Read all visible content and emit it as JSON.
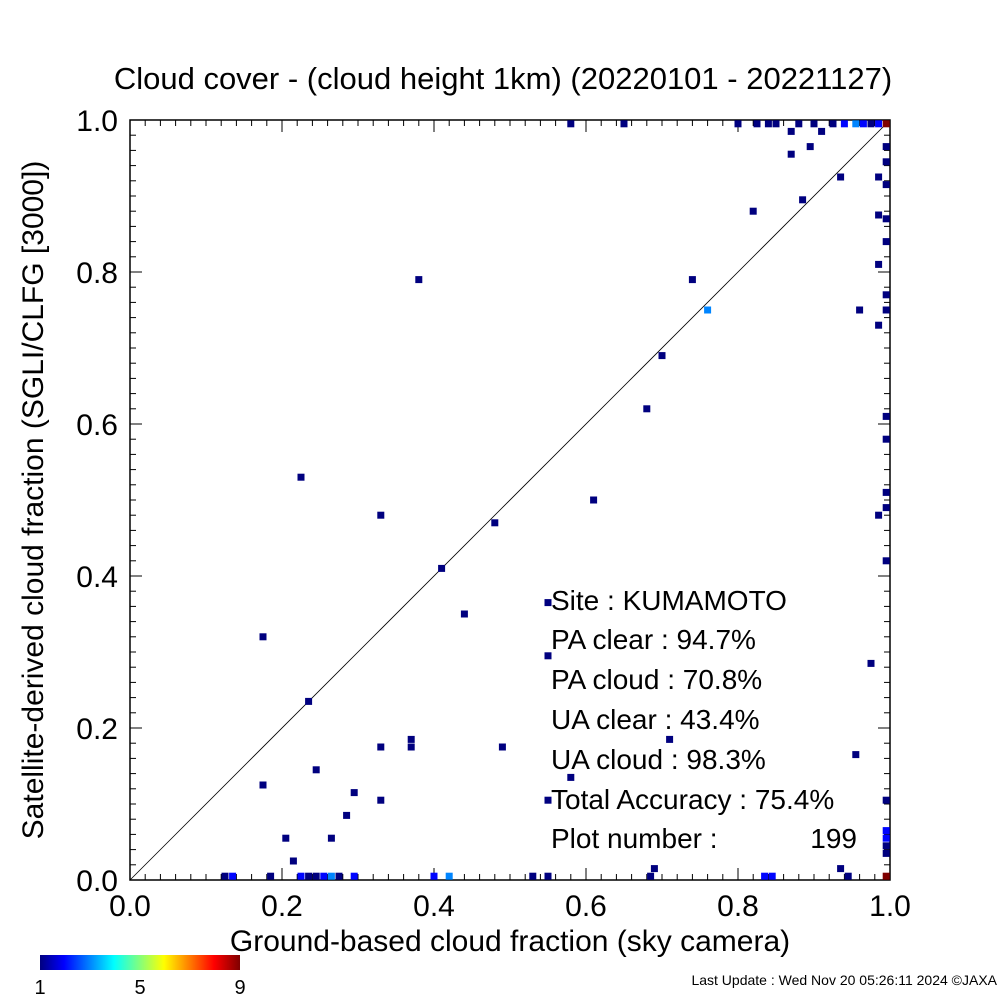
{
  "chart_data": {
    "type": "heatmap",
    "title": "Cloud cover - (cloud height 1km)  (20220101 - 20221127)",
    "xlabel": "Ground-based cloud fraction (sky camera)",
    "ylabel": "Satellite-derived cloud fraction (SGLI/CLFG [3000])",
    "xlim": [
      0,
      1
    ],
    "ylim": [
      0,
      1
    ],
    "xticks": [
      "0.0",
      "0.2",
      "0.4",
      "0.6",
      "0.8",
      "1.0"
    ],
    "yticks": [
      "0.0",
      "0.2",
      "0.4",
      "0.6",
      "0.8",
      "1.0"
    ],
    "reference_line": "1:1 diagonal",
    "grid": false,
    "colorbar": {
      "min": 1,
      "max": 9,
      "labels": [
        "1",
        "5",
        "9"
      ],
      "colors": [
        "#00007f",
        "#0000ff",
        "#00ffff",
        "#ffff00",
        "#ff0000",
        "#7f0000"
      ]
    },
    "points": [
      {
        "x": 0.175,
        "y": 0.32,
        "count": 1
      },
      {
        "x": 0.225,
        "y": 0.53,
        "count": 1
      },
      {
        "x": 0.235,
        "y": 0.235,
        "count": 1
      },
      {
        "x": 0.245,
        "y": 0.145,
        "count": 1
      },
      {
        "x": 0.175,
        "y": 0.125,
        "count": 1
      },
      {
        "x": 0.205,
        "y": 0.055,
        "count": 1
      },
      {
        "x": 0.215,
        "y": 0.025,
        "count": 1
      },
      {
        "x": 0.265,
        "y": 0.055,
        "count": 1
      },
      {
        "x": 0.285,
        "y": 0.085,
        "count": 1
      },
      {
        "x": 0.295,
        "y": 0.115,
        "count": 1
      },
      {
        "x": 0.33,
        "y": 0.105,
        "count": 1
      },
      {
        "x": 0.33,
        "y": 0.175,
        "count": 1
      },
      {
        "x": 0.33,
        "y": 0.48,
        "count": 1
      },
      {
        "x": 0.37,
        "y": 0.175,
        "count": 1
      },
      {
        "x": 0.37,
        "y": 0.185,
        "count": 1
      },
      {
        "x": 0.38,
        "y": 0.79,
        "count": 1
      },
      {
        "x": 0.41,
        "y": 0.41,
        "count": 1
      },
      {
        "x": 0.44,
        "y": 0.35,
        "count": 1
      },
      {
        "x": 0.48,
        "y": 0.47,
        "count": 1
      },
      {
        "x": 0.49,
        "y": 0.175,
        "count": 1
      },
      {
        "x": 0.55,
        "y": 0.365,
        "count": 1
      },
      {
        "x": 0.55,
        "y": 0.295,
        "count": 1
      },
      {
        "x": 0.55,
        "y": 0.105,
        "count": 1
      },
      {
        "x": 0.58,
        "y": 0.135,
        "count": 1
      },
      {
        "x": 0.61,
        "y": 0.5,
        "count": 1
      },
      {
        "x": 0.68,
        "y": 0.62,
        "count": 1
      },
      {
        "x": 0.69,
        "y": 0.015,
        "count": 1
      },
      {
        "x": 0.7,
        "y": 0.69,
        "count": 1
      },
      {
        "x": 0.71,
        "y": 0.185,
        "count": 1
      },
      {
        "x": 0.74,
        "y": 0.79,
        "count": 1
      },
      {
        "x": 0.76,
        "y": 0.75,
        "count": 3
      },
      {
        "x": 0.82,
        "y": 0.88,
        "count": 1
      },
      {
        "x": 0.87,
        "y": 0.955,
        "count": 1
      },
      {
        "x": 0.885,
        "y": 0.895,
        "count": 1
      },
      {
        "x": 0.895,
        "y": 0.965,
        "count": 1
      },
      {
        "x": 0.935,
        "y": 0.925,
        "count": 1
      },
      {
        "x": 0.96,
        "y": 0.75,
        "count": 1
      },
      {
        "x": 0.955,
        "y": 0.165,
        "count": 1
      },
      {
        "x": 0.975,
        "y": 0.285,
        "count": 1
      },
      {
        "x": 0.985,
        "y": 0.925,
        "count": 1
      },
      {
        "x": 0.985,
        "y": 0.875,
        "count": 1
      },
      {
        "x": 0.985,
        "y": 0.81,
        "count": 1
      },
      {
        "x": 0.985,
        "y": 0.73,
        "count": 1
      },
      {
        "x": 0.985,
        "y": 0.48,
        "count": 1
      },
      {
        "x": 0.935,
        "y": 0.015,
        "count": 1
      },
      {
        "x": 0.945,
        "y": 0.005,
        "count": 1
      },
      {
        "x": 0.58,
        "y": 0.995,
        "count": 1
      },
      {
        "x": 0.65,
        "y": 0.995,
        "count": 1
      },
      {
        "x": 0.8,
        "y": 0.995,
        "count": 1
      },
      {
        "x": 0.825,
        "y": 0.995,
        "count": 1
      },
      {
        "x": 0.84,
        "y": 0.995,
        "count": 1
      },
      {
        "x": 0.85,
        "y": 0.995,
        "count": 1
      },
      {
        "x": 0.87,
        "y": 0.985,
        "count": 1
      },
      {
        "x": 0.88,
        "y": 0.995,
        "count": 1
      },
      {
        "x": 0.9,
        "y": 0.995,
        "count": 1
      },
      {
        "x": 0.91,
        "y": 0.985,
        "count": 1
      },
      {
        "x": 0.925,
        "y": 0.995,
        "count": 1
      },
      {
        "x": 0.94,
        "y": 0.995,
        "count": 2
      },
      {
        "x": 0.955,
        "y": 0.995,
        "count": 3
      },
      {
        "x": 0.965,
        "y": 0.995,
        "count": 2
      },
      {
        "x": 0.975,
        "y": 0.995,
        "count": 1
      },
      {
        "x": 0.985,
        "y": 0.995,
        "count": 2
      },
      {
        "x": 0.995,
        "y": 0.995,
        "count": 9
      },
      {
        "x": 0.995,
        "y": 0.965,
        "count": 1
      },
      {
        "x": 0.995,
        "y": 0.945,
        "count": 1
      },
      {
        "x": 0.995,
        "y": 0.915,
        "count": 1
      },
      {
        "x": 0.995,
        "y": 0.87,
        "count": 1
      },
      {
        "x": 0.995,
        "y": 0.84,
        "count": 1
      },
      {
        "x": 0.995,
        "y": 0.77,
        "count": 1
      },
      {
        "x": 0.995,
        "y": 0.75,
        "count": 1
      },
      {
        "x": 0.995,
        "y": 0.61,
        "count": 1
      },
      {
        "x": 0.995,
        "y": 0.58,
        "count": 1
      },
      {
        "x": 0.995,
        "y": 0.51,
        "count": 1
      },
      {
        "x": 0.995,
        "y": 0.49,
        "count": 1
      },
      {
        "x": 0.995,
        "y": 0.42,
        "count": 1
      },
      {
        "x": 0.995,
        "y": 0.105,
        "count": 1
      },
      {
        "x": 0.995,
        "y": 0.065,
        "count": 2
      },
      {
        "x": 0.995,
        "y": 0.055,
        "count": 2
      },
      {
        "x": 0.995,
        "y": 0.045,
        "count": 1
      },
      {
        "x": 0.995,
        "y": 0.035,
        "count": 1
      },
      {
        "x": 0.995,
        "y": 0.005,
        "count": 9
      },
      {
        "x": 0.125,
        "y": 0.005,
        "count": 1
      },
      {
        "x": 0.135,
        "y": 0.005,
        "count": 2
      },
      {
        "x": 0.185,
        "y": 0.005,
        "count": 1
      },
      {
        "x": 0.225,
        "y": 0.005,
        "count": 2
      },
      {
        "x": 0.235,
        "y": 0.005,
        "count": 1
      },
      {
        "x": 0.245,
        "y": 0.005,
        "count": 1
      },
      {
        "x": 0.255,
        "y": 0.005,
        "count": 2
      },
      {
        "x": 0.265,
        "y": 0.005,
        "count": 3
      },
      {
        "x": 0.275,
        "y": 0.005,
        "count": 1
      },
      {
        "x": 0.295,
        "y": 0.005,
        "count": 2
      },
      {
        "x": 0.4,
        "y": 0.005,
        "count": 2
      },
      {
        "x": 0.42,
        "y": 0.005,
        "count": 3
      },
      {
        "x": 0.53,
        "y": 0.005,
        "count": 1
      },
      {
        "x": 0.55,
        "y": 0.005,
        "count": 1
      },
      {
        "x": 0.685,
        "y": 0.005,
        "count": 1
      },
      {
        "x": 0.835,
        "y": 0.005,
        "count": 2
      },
      {
        "x": 0.845,
        "y": 0.005,
        "count": 2
      }
    ]
  },
  "stats": {
    "site": "Site : KUMAMOTO",
    "pa_clear": "PA clear :  94.7%",
    "pa_cloud": "PA cloud :  70.8%",
    "ua_clear": "UA clear :  43.4%",
    "ua_cloud": "UA cloud :  98.3%",
    "total_accuracy": "Total Accuracy :  75.4%",
    "plot_number_label": "Plot number :",
    "plot_number_value": "199"
  },
  "footer": "Last Update : Wed Nov 20 05:26:11 2024  ©JAXA"
}
